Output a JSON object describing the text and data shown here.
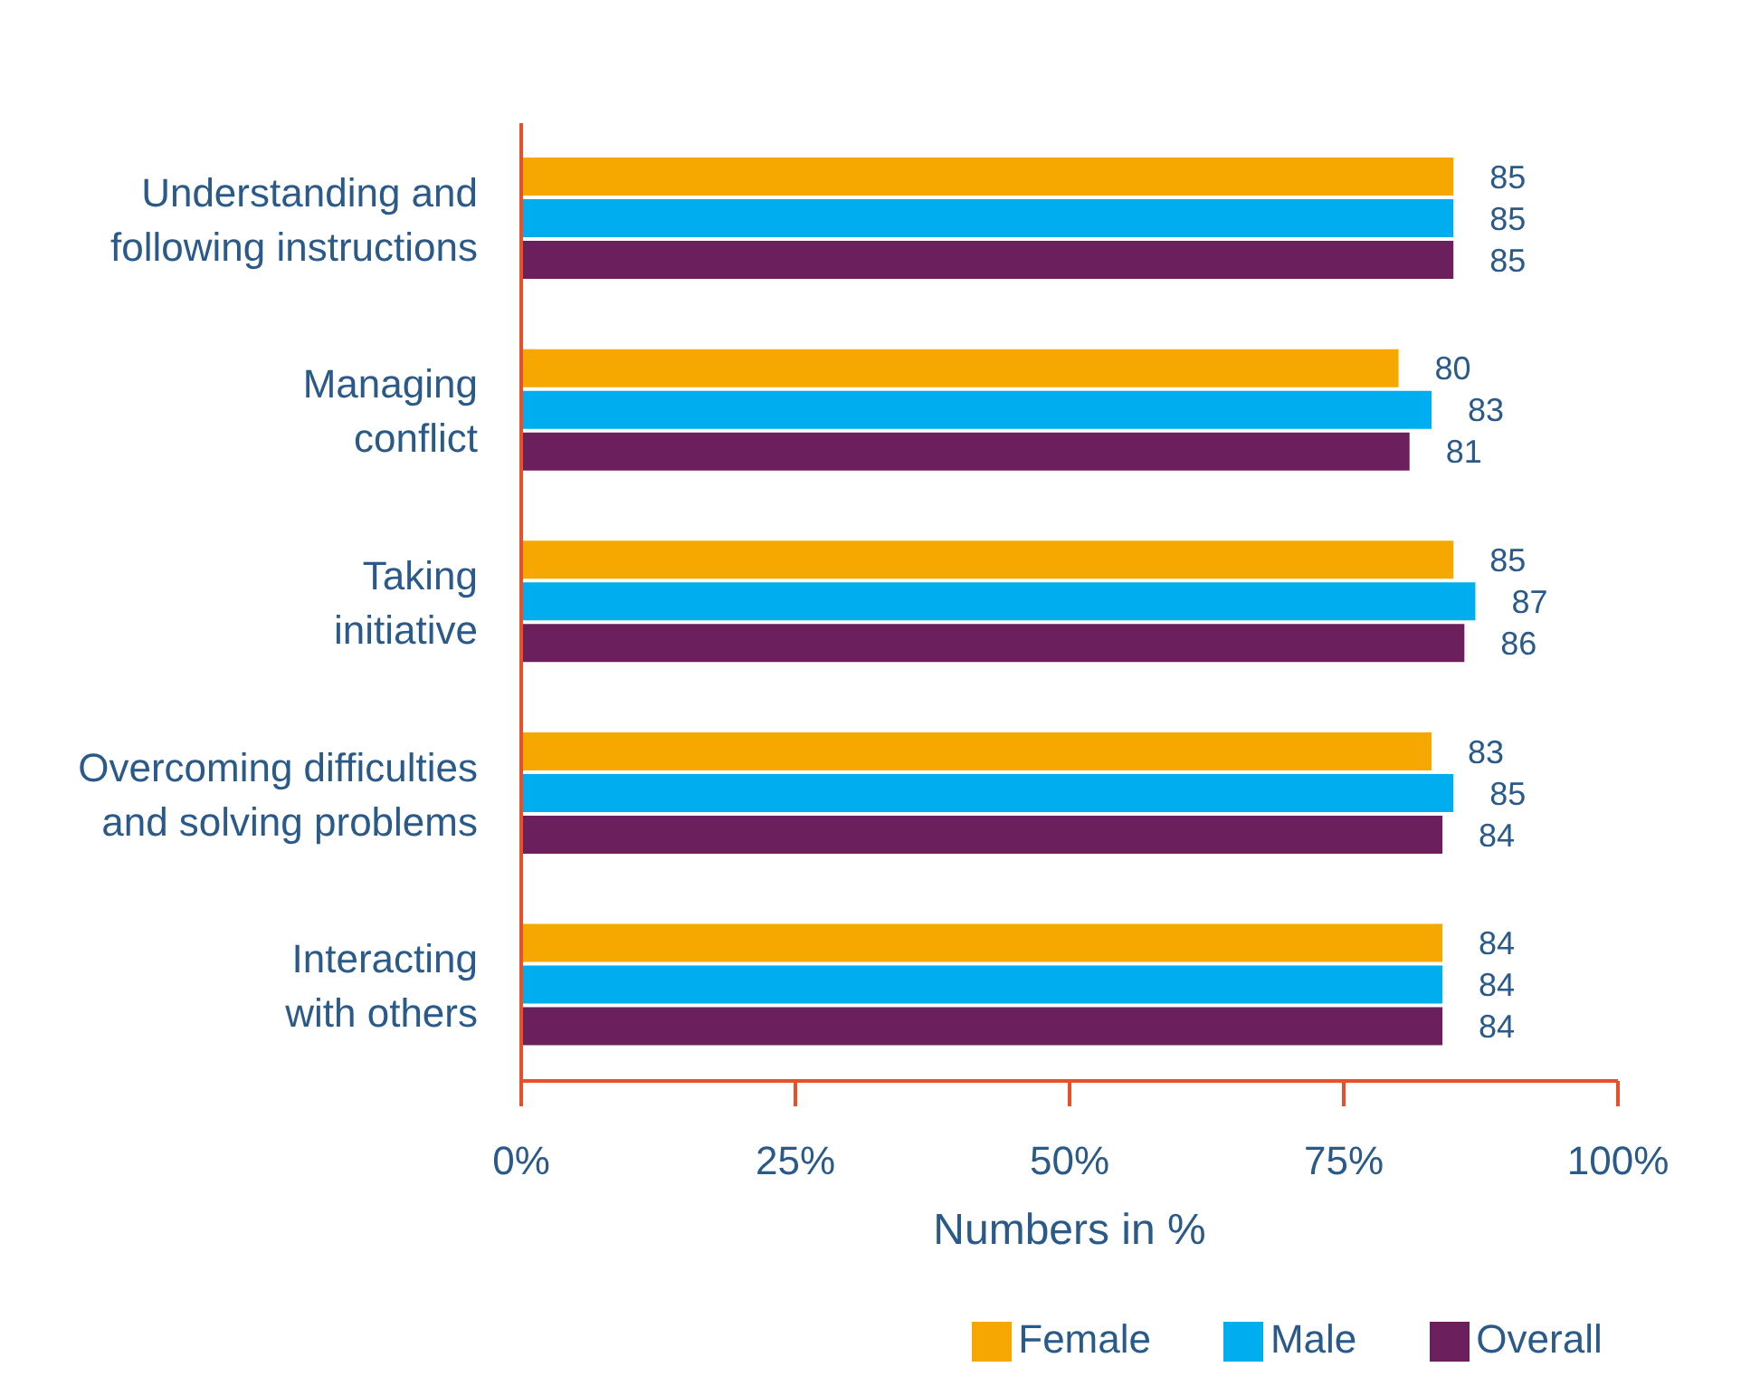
{
  "chart_data": {
    "type": "bar",
    "orientation": "horizontal",
    "xlabel": "Numbers in %",
    "categories": [
      "Understanding and following instructions",
      "Managing conflict",
      "Taking initiative",
      "Overcoming difficulties and solving problems",
      "Interacting with others"
    ],
    "series": [
      {
        "name": "Female",
        "color": "#f7a800",
        "values": [
          85,
          80,
          85,
          83,
          84
        ]
      },
      {
        "name": "Male",
        "color": "#00aeef",
        "values": [
          85,
          83,
          87,
          85,
          84
        ]
      },
      {
        "name": "Overall",
        "color": "#6b1f5c",
        "values": [
          85,
          81,
          86,
          84,
          84
        ]
      }
    ],
    "xlim": [
      0,
      100
    ],
    "xticks": [
      {
        "value": 0,
        "label": "0%"
      },
      {
        "value": 25,
        "label": "25%"
      },
      {
        "value": 50,
        "label": "50%"
      },
      {
        "value": 75,
        "label": "75%"
      },
      {
        "value": 100,
        "label": "100%"
      }
    ],
    "data_labels": true,
    "grid": false,
    "legend": "bottom"
  }
}
